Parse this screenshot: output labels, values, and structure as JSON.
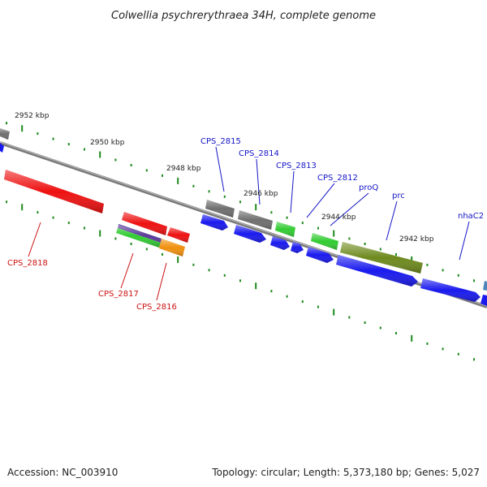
{
  "title": "Colwellia psychrerythraea 34H, complete genome",
  "footer": {
    "accession": "Accession: NC_003910",
    "topology": "Topology: circular; Length: 5,373,180 bp; Genes: 5,027"
  },
  "ruler": [
    {
      "label": "2952 kbp"
    },
    {
      "label": "2950 kbp"
    },
    {
      "label": "2948 kbp"
    },
    {
      "label": "2946 kbp"
    },
    {
      "label": "2944 kbp"
    },
    {
      "label": "2942 kbp"
    }
  ],
  "gene_labels": [
    {
      "label": "CPS_2815",
      "color": "#1515c8"
    },
    {
      "label": "CPS_2814",
      "color": "#1515c8"
    },
    {
      "label": "CPS_2813",
      "color": "#1515c8"
    },
    {
      "label": "CPS_2812",
      "color": "#1515c8"
    },
    {
      "label": "proQ",
      "color": "#1515c8"
    },
    {
      "label": "prc",
      "color": "#1515c8"
    },
    {
      "label": "nhaC2",
      "color": "#1515c8"
    },
    {
      "label": "CPS_2818",
      "color": "#cc1111"
    },
    {
      "label": "CPS_2817",
      "color": "#cc1111"
    },
    {
      "label": "CPS_2816",
      "color": "#cc1111"
    }
  ],
  "colors": {
    "backbone": "#7a7a7a",
    "tick": "#1f8a1f",
    "red": "#ee1111",
    "blue": "#1a1aee",
    "gray": "#6f6f6f",
    "green": "#33cc33",
    "olive": "#6e8a1e",
    "orange": "#f0900f",
    "purple": "#5a3a9a",
    "steelblue": "#4a86b8"
  }
}
